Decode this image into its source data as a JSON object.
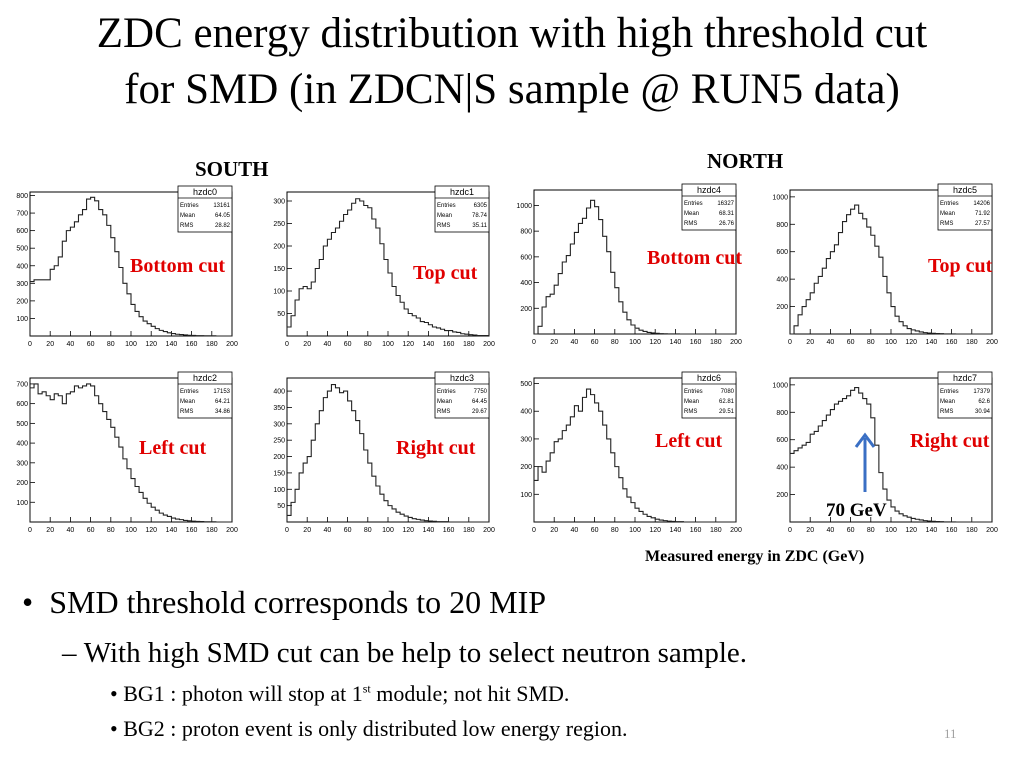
{
  "title_line1": "ZDC energy distribution with high threshold cut",
  "title_line2": "for SMD  (in ZDCN|S sample @ RUN5 data)",
  "south_label": "SOUTH",
  "north_label": "NORTH",
  "stat_labels": [
    "Entries",
    "Mean",
    "RMS"
  ],
  "xaxis_caption": "Measured energy in ZDC (GeV)",
  "arrow_label": "70 GeV",
  "bullets": {
    "b1": "SMD threshold corresponds to 20 MIP",
    "b1_marker": "•",
    "b2": "With high SMD cut can be help to select neutron sample.",
    "b2_marker": "–",
    "b3_pre": "BG1 : photon will stop at 1",
    "b3_sup": "st",
    "b3_post": " module; not hit SMD.",
    "b3_marker": "•",
    "b4": "BG2 : proton event is only distributed low energy region.",
    "b4_marker": "•"
  },
  "page_number": "11",
  "colors": {
    "cut_label": "#e00000",
    "arrow": "#3a6fc4",
    "page_number": "#a0a0a0"
  },
  "chart_data": [
    {
      "type": "bar",
      "name": "hzdc0",
      "cut": "Bottom cut",
      "stats": {
        "Entries": "13161",
        "Mean": "64.05",
        "RMS": "28.82"
      },
      "xlim": [
        0,
        200
      ],
      "ylim": [
        0,
        820
      ],
      "xticks": [
        0,
        20,
        40,
        60,
        80,
        100,
        120,
        140,
        160,
        180,
        200
      ],
      "yticks": [
        100,
        200,
        300,
        400,
        500,
        600,
        700,
        800
      ],
      "bin_width": 4,
      "values": [
        310,
        320,
        320,
        320,
        320,
        380,
        400,
        450,
        540,
        600,
        620,
        650,
        690,
        720,
        780,
        790,
        770,
        720,
        690,
        630,
        560,
        480,
        390,
        300,
        240,
        180,
        140,
        110,
        85,
        70,
        55,
        42,
        32,
        25,
        18,
        14,
        10,
        8,
        6,
        4,
        3,
        2,
        2,
        1,
        1,
        1,
        0,
        0,
        0,
        0
      ]
    },
    {
      "type": "bar",
      "name": "hzdc1",
      "cut": "Top cut",
      "stats": {
        "Entries": "6305",
        "Mean": "78.74",
        "RMS": "35.11"
      },
      "xlim": [
        0,
        200
      ],
      "ylim": [
        0,
        320
      ],
      "xticks": [
        0,
        20,
        40,
        60,
        80,
        100,
        120,
        140,
        160,
        180,
        200
      ],
      "yticks": [
        50,
        100,
        150,
        200,
        250,
        300
      ],
      "bin_width": 4,
      "values": [
        20,
        45,
        80,
        105,
        110,
        105,
        120,
        150,
        170,
        200,
        215,
        230,
        240,
        255,
        270,
        280,
        295,
        305,
        300,
        290,
        285,
        260,
        240,
        205,
        170,
        140,
        110,
        90,
        75,
        60,
        50,
        45,
        40,
        32,
        30,
        25,
        20,
        18,
        15,
        12,
        12,
        9,
        8,
        5,
        4,
        3,
        2,
        1,
        1,
        1
      ]
    },
    {
      "type": "bar",
      "name": "hzdc4",
      "cut": "Bottom cut",
      "stats": {
        "Entries": "16327",
        "Mean": "68.31",
        "RMS": "26.76"
      },
      "xlim": [
        0,
        200
      ],
      "ylim": [
        0,
        1120
      ],
      "xticks": [
        0,
        20,
        40,
        60,
        80,
        100,
        120,
        140,
        160,
        180,
        200
      ],
      "yticks": [
        200,
        400,
        600,
        800,
        1000
      ],
      "bin_width": 4,
      "values": [
        0,
        60,
        210,
        290,
        310,
        380,
        470,
        560,
        610,
        700,
        790,
        860,
        900,
        980,
        1040,
        990,
        890,
        760,
        640,
        480,
        360,
        250,
        170,
        110,
        70,
        45,
        30,
        20,
        12,
        8,
        5,
        3,
        2,
        1,
        1,
        1,
        0,
        0,
        0,
        0,
        0,
        0,
        0,
        0,
        0,
        0,
        0,
        0,
        0,
        0
      ]
    },
    {
      "type": "bar",
      "name": "hzdc5",
      "cut": "Top cut",
      "stats": {
        "Entries": "14206",
        "Mean": "71.92",
        "RMS": "27.57"
      },
      "xlim": [
        0,
        200
      ],
      "ylim": [
        0,
        1050
      ],
      "xticks": [
        0,
        20,
        40,
        60,
        80,
        100,
        120,
        140,
        160,
        180,
        200
      ],
      "yticks": [
        200,
        400,
        600,
        800,
        1000
      ],
      "bin_width": 4,
      "values": [
        0,
        60,
        140,
        200,
        250,
        300,
        370,
        420,
        480,
        550,
        600,
        650,
        740,
        820,
        870,
        910,
        940,
        880,
        840,
        780,
        720,
        640,
        560,
        420,
        300,
        200,
        130,
        90,
        60,
        40,
        30,
        22,
        15,
        10,
        7,
        5,
        3,
        2,
        1,
        1,
        1,
        0,
        0,
        0,
        0,
        0,
        0,
        0,
        0,
        0
      ]
    },
    {
      "type": "bar",
      "name": "hzdc2",
      "cut": "Left cut",
      "stats": {
        "Entries": "17153",
        "Mean": "64.21",
        "RMS": "34.86"
      },
      "xlim": [
        0,
        200
      ],
      "ylim": [
        0,
        730
      ],
      "xticks": [
        0,
        20,
        40,
        60,
        80,
        100,
        120,
        140,
        160,
        180,
        200
      ],
      "yticks": [
        100,
        200,
        300,
        400,
        500,
        600,
        700
      ],
      "bin_width": 4,
      "values": [
        680,
        700,
        650,
        660,
        640,
        620,
        650,
        640,
        600,
        650,
        660,
        690,
        680,
        690,
        700,
        690,
        640,
        600,
        560,
        520,
        480,
        430,
        380,
        320,
        270,
        220,
        180,
        150,
        120,
        95,
        75,
        60,
        45,
        35,
        28,
        20,
        15,
        12,
        8,
        6,
        4,
        3,
        2,
        1,
        1,
        1,
        0,
        0,
        0,
        0
      ]
    },
    {
      "type": "bar",
      "name": "hzdc3",
      "cut": "Right cut",
      "stats": {
        "Entries": "7750",
        "Mean": "64.45",
        "RMS": "29.67"
      },
      "xlim": [
        0,
        200
      ],
      "ylim": [
        0,
        440
      ],
      "xticks": [
        0,
        20,
        40,
        60,
        80,
        100,
        120,
        140,
        160,
        180,
        200
      ],
      "yticks": [
        50,
        100,
        150,
        200,
        250,
        300,
        350,
        400
      ],
      "bin_width": 4,
      "values": [
        20,
        60,
        100,
        150,
        180,
        200,
        250,
        300,
        340,
        380,
        400,
        420,
        410,
        395,
        400,
        370,
        340,
        310,
        270,
        220,
        180,
        140,
        110,
        85,
        65,
        50,
        40,
        30,
        24,
        18,
        14,
        10,
        8,
        6,
        4,
        3,
        2,
        1,
        1,
        1,
        0,
        0,
        0,
        0,
        0,
        0,
        0,
        0,
        0,
        0
      ]
    },
    {
      "type": "bar",
      "name": "hzdc6",
      "cut": "Left cut",
      "stats": {
        "Entries": "7080",
        "Mean": "62.81",
        "RMS": "29.51"
      },
      "xlim": [
        0,
        200
      ],
      "ylim": [
        0,
        520
      ],
      "xticks": [
        0,
        20,
        40,
        60,
        80,
        100,
        120,
        140,
        160,
        180,
        200
      ],
      "yticks": [
        100,
        200,
        300,
        400,
        500
      ],
      "bin_width": 4,
      "values": [
        150,
        200,
        180,
        220,
        250,
        290,
        300,
        330,
        350,
        380,
        420,
        400,
        450,
        480,
        460,
        430,
        400,
        350,
        300,
        250,
        200,
        160,
        120,
        90,
        70,
        50,
        38,
        28,
        20,
        15,
        10,
        7,
        5,
        3,
        2,
        1,
        1,
        0,
        0,
        0,
        0,
        0,
        0,
        0,
        0,
        0,
        0,
        0,
        0,
        0
      ]
    },
    {
      "type": "bar",
      "name": "hzdc7",
      "cut": "Right cut",
      "stats": {
        "Entries": "17379",
        "Mean": "62.6",
        "RMS": "30.94"
      },
      "xlim": [
        0,
        200
      ],
      "ylim": [
        0,
        1050
      ],
      "xticks": [
        0,
        20,
        40,
        60,
        80,
        100,
        120,
        140,
        160,
        180,
        200
      ],
      "yticks": [
        200,
        400,
        600,
        800,
        1000
      ],
      "bin_width": 4,
      "values": [
        500,
        520,
        540,
        560,
        580,
        640,
        660,
        700,
        740,
        780,
        820,
        860,
        880,
        900,
        920,
        960,
        980,
        940,
        900,
        860,
        760,
        560,
        360,
        240,
        160,
        110,
        80,
        60,
        45,
        35,
        26,
        20,
        15,
        10,
        7,
        5,
        3,
        2,
        1,
        1,
        1,
        0,
        0,
        0,
        0,
        0,
        0,
        0,
        0,
        0
      ]
    }
  ]
}
